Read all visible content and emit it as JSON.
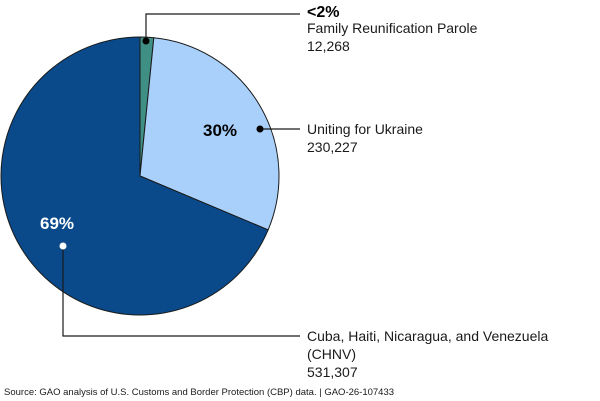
{
  "chart_data": {
    "type": "pie",
    "slices": [
      {
        "name": "Family Reunification Parole",
        "value": 12268,
        "value_label": "12,268",
        "percent_label": "<2%",
        "color": "#3f8f84"
      },
      {
        "name": "Uniting for Ukraine",
        "value": 230227,
        "value_label": "230,227",
        "percent_label": "30%",
        "color": "#a8d0fa"
      },
      {
        "name": "Cuba, Haiti, Nicaragua, and Venezuela (CHNV)",
        "name_lines": [
          "Cuba, Haiti, Nicaragua, and Venezuela",
          "(CHNV)"
        ],
        "value": 531307,
        "value_label": "531,307",
        "percent_label": "69%",
        "color": "#0a4a8a"
      }
    ]
  },
  "footer": {
    "source": "Source: GAO analysis of U.S. Customs and Border Protection (CBP) data.  |  GAO-26-107433"
  }
}
